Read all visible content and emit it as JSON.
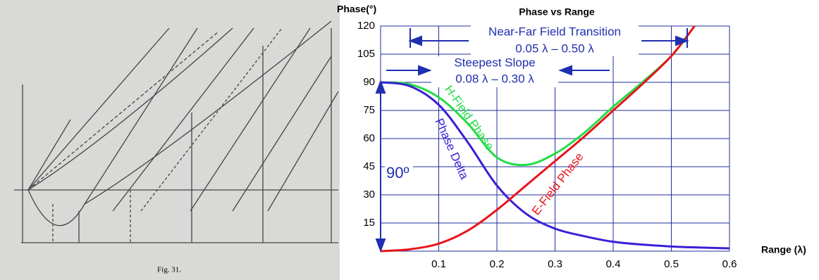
{
  "scan": {
    "caption": "Fig. 31."
  },
  "chart_data": {
    "type": "line",
    "title": "Phase vs Range",
    "y_label": "Phase(°)",
    "x_label": "Range (λ)",
    "x": [
      0,
      0.05,
      0.1,
      0.15,
      0.2,
      0.25,
      0.3,
      0.35,
      0.4,
      0.45,
      0.5,
      0.54,
      0.6
    ],
    "series": [
      {
        "name": "H-Field Phase",
        "color": "#22dd44",
        "values": [
          90,
          89,
          82,
          68,
          50,
          46,
          52,
          63,
          77,
          90,
          104,
          120,
          null
        ]
      },
      {
        "name": "Phase Delta",
        "color": "#3a1fd6",
        "values": [
          90,
          88,
          78,
          58,
          35,
          20,
          12,
          8,
          5,
          3.5,
          2.5,
          2,
          1.5
        ]
      },
      {
        "name": "E-Field Phase",
        "color": "#e8141b",
        "values": [
          0,
          1,
          4,
          11,
          22,
          35,
          48,
          61,
          75,
          89,
          104,
          120,
          null
        ]
      }
    ],
    "xlim": [
      0,
      0.6
    ],
    "xticks": [
      0.1,
      0.2,
      0.3,
      0.4,
      0.5,
      0.6
    ],
    "ylim": [
      0,
      120
    ],
    "yticks": [
      15,
      30,
      45,
      60,
      75,
      90,
      105,
      120
    ],
    "grid": true,
    "annotations": [
      "Near-Far Field Transition",
      "0.05 λ – 0.50 λ",
      "Steepest Slope",
      "0.08 λ – 0.30 λ",
      "90º"
    ]
  }
}
